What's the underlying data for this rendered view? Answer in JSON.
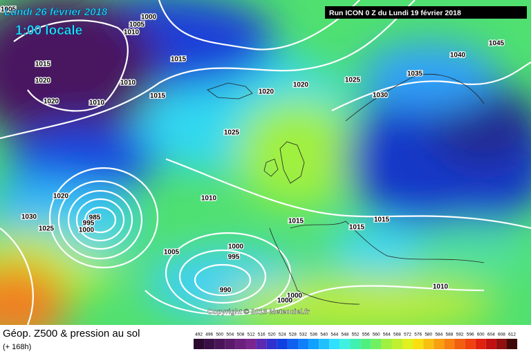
{
  "header": {
    "date": "Lundi 26 février 2018",
    "time": "1:00 locale",
    "run": "Run ICON 0 Z du Lundi 19 février 2018"
  },
  "copyright": "Copyright © 2018 Meteociel.fr",
  "footer": {
    "title": "Géop. Z500 & pression au sol",
    "subtitle": "(+ 168h)"
  },
  "isobar_labels": [
    "1005",
    "1000",
    "1005",
    "1010",
    "1015",
    "1015",
    "1020",
    "1010",
    "1020",
    "1010",
    "1015",
    "1020",
    "1020",
    "1025",
    "1030",
    "1035",
    "1040",
    "1045",
    "1025",
    "1020",
    "1030",
    "1025",
    "1010",
    "985",
    "995",
    "1000",
    "1005",
    "1000",
    "995",
    "990",
    "1015",
    "1015",
    "1015",
    "1010",
    "1000",
    "1000"
  ],
  "scale": {
    "labels": [
      492,
      496,
      500,
      504,
      508,
      512,
      516,
      520,
      524,
      528,
      532,
      536,
      540,
      544,
      548,
      552,
      556,
      560,
      564,
      568,
      572,
      576,
      580,
      584,
      588,
      592,
      596,
      600,
      604,
      608,
      612
    ],
    "colors": [
      "#2b0a30",
      "#3a0f45",
      "#4a1458",
      "#5a1a6a",
      "#6a207c",
      "#7a268e",
      "#5a2ab0",
      "#3030d0",
      "#1040e0",
      "#1060f0",
      "#1080f8",
      "#10a0ff",
      "#20c0ff",
      "#30e0ff",
      "#40f0e0",
      "#40f0b0",
      "#50f080",
      "#70f060",
      "#a0f040",
      "#c0f030",
      "#e0f020",
      "#f8e010",
      "#f8c010",
      "#f8a010",
      "#f88010",
      "#f06010",
      "#f04010",
      "#e02010",
      "#c01010",
      "#901010",
      "#400808"
    ]
  }
}
